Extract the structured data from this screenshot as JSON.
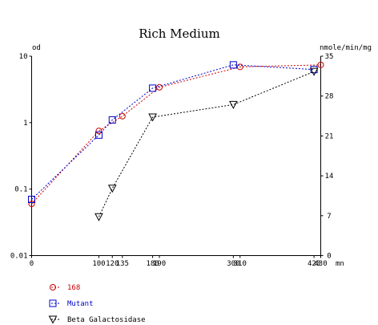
{
  "chart_data": {
    "type": "line",
    "title": "Rich Medium",
    "left_axis": {
      "label": "od",
      "scale": "log",
      "range": [
        0.01,
        10
      ],
      "ticks": [
        "10",
        "1",
        "0.1",
        "0.01"
      ]
    },
    "right_axis": {
      "label": "nmole/min/mg",
      "scale": "linear",
      "range": [
        0,
        35
      ],
      "ticks": [
        "35",
        "28",
        "21",
        "14",
        "7",
        "0"
      ]
    },
    "x_axis": {
      "label": "mn",
      "range": [
        0,
        430
      ],
      "ticks": [
        "0",
        "100",
        "120",
        "135",
        "180",
        "190",
        "300",
        "310",
        "420",
        "430"
      ]
    },
    "grid": false,
    "legend_position": "bottom-left",
    "series": [
      {
        "name": "168",
        "axis": "left",
        "color": "#cc0000",
        "marker": "circle",
        "line": "dashed",
        "x": [
          0,
          100,
          135,
          190,
          310,
          430
        ],
        "y": [
          0.06,
          0.75,
          1.25,
          3.4,
          6.9,
          7.4
        ]
      },
      {
        "name": "Mutant",
        "axis": "left",
        "color": "#0000cc",
        "marker": "square",
        "line": "dashed",
        "x": [
          0,
          100,
          120,
          180,
          300,
          420
        ],
        "y": [
          0.07,
          0.65,
          1.1,
          3.3,
          7.4,
          6.3
        ]
      },
      {
        "name": "Beta Galactosidase",
        "axis": "right",
        "color": "#000000",
        "marker": "triangle-down",
        "line": "dashed",
        "x": [
          100,
          120,
          180,
          300,
          420
        ],
        "y": [
          6.8,
          11.8,
          24.3,
          26.5,
          32.3
        ]
      }
    ]
  }
}
